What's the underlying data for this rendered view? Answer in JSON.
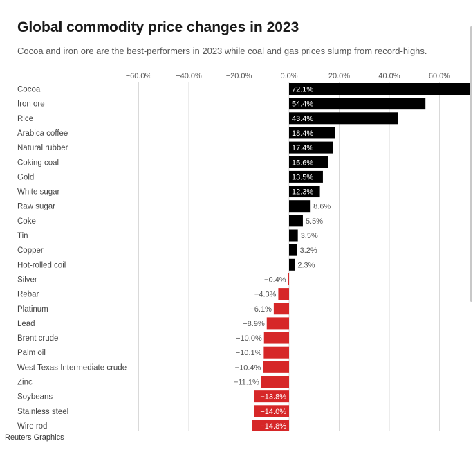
{
  "title": "Global commodity price changes in 2023",
  "subtitle": "Cocoa and iron ore are the best-performers in 2023 while coal and gas prices slump from record-highs.",
  "source": "Reuters Graphics",
  "colors": {
    "positive": "#000000",
    "negative": "#d62728",
    "grid": "#d9d9d9",
    "label": "#444444"
  },
  "chart_data": {
    "type": "bar",
    "orientation": "horizontal",
    "title": "Global commodity price changes in 2023",
    "xlabel": "",
    "ylabel": "",
    "xlim": [
      -60,
      72.1
    ],
    "xticks": [
      -60,
      -40,
      -20,
      0,
      20,
      40,
      60
    ],
    "xtick_labels": [
      "−60.0%",
      "−40.0%",
      "−20.0%",
      "0.0%",
      "20.0%",
      "40.0%",
      "60.0%"
    ],
    "grid": true,
    "categories": [
      "Cocoa",
      "Iron ore",
      "Rice",
      "Arabica coffee",
      "Natural rubber",
      "Coking coal",
      "Gold",
      "White sugar",
      "Raw sugar",
      "Coke",
      "Tin",
      "Copper",
      "Hot-rolled coil",
      "Silver",
      "Rebar",
      "Platinum",
      "Lead",
      "Brent crude",
      "Palm oil",
      "West Texas Intermediate crude",
      "Zinc",
      "Soybeans",
      "Stainless steel",
      "Wire rod"
    ],
    "values": [
      72.1,
      54.4,
      43.4,
      18.4,
      17.4,
      15.6,
      13.5,
      12.3,
      8.6,
      5.5,
      3.5,
      3.2,
      2.3,
      -0.4,
      -4.3,
      -6.1,
      -8.9,
      -10.0,
      -10.1,
      -10.4,
      -11.1,
      -13.8,
      -14.0,
      -14.8
    ],
    "value_labels": [
      "72.1%",
      "54.4%",
      "43.4%",
      "18.4%",
      "17.4%",
      "15.6%",
      "13.5%",
      "12.3%",
      "8.6%",
      "5.5%",
      "3.5%",
      "3.2%",
      "2.3%",
      "−0.4%",
      "−4.3%",
      "−6.1%",
      "−8.9%",
      "−10.0%",
      "−10.1%",
      "−10.4%",
      "−11.1%",
      "−13.8%",
      "−14.0%",
      "−14.8%"
    ]
  }
}
